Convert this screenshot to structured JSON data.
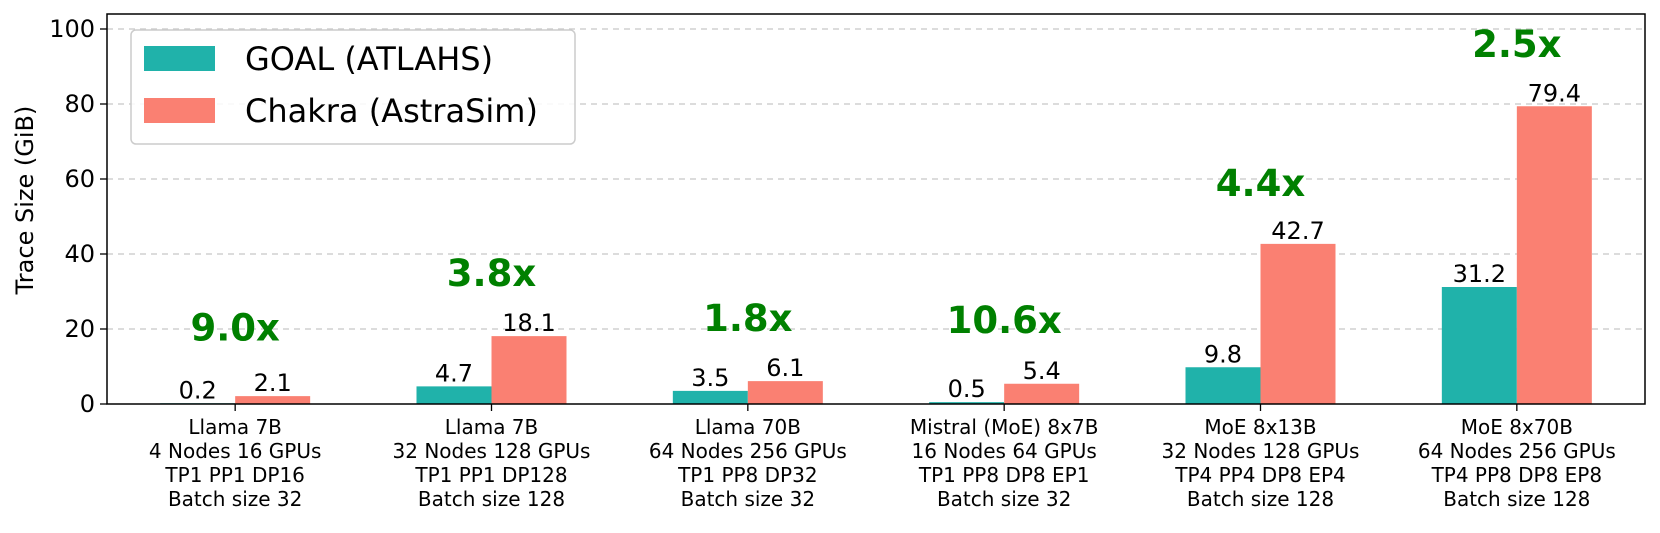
{
  "chart_data": {
    "type": "bar",
    "title": "",
    "xlabel": "",
    "ylabel": "Trace Size (GiB)",
    "ylim": [
      0,
      104
    ],
    "yticks": [
      0,
      20,
      40,
      60,
      80,
      100
    ],
    "grid": "y-dashed",
    "legend_position": "top-left",
    "categories": [
      [
        "Llama 7B",
        "4 Nodes 16 GPUs",
        "TP1 PP1 DP16",
        "Batch size 32"
      ],
      [
        "Llama 7B",
        "32 Nodes 128 GPUs",
        "TP1 PP1 DP128",
        "Batch size 128"
      ],
      [
        "Llama 70B",
        "64 Nodes 256 GPUs",
        "TP1 PP8 DP32",
        "Batch size 32"
      ],
      [
        "Mistral (MoE) 8x7B",
        "16 Nodes 64 GPUs",
        "TP1 PP8 DP8 EP1",
        "Batch size 32"
      ],
      [
        "MoE 8x13B",
        "32 Nodes 128 GPUs",
        "TP4 PP4 DP8 EP4",
        "Batch size 128"
      ],
      [
        "MoE 8x70B",
        "64 Nodes 256 GPUs",
        "TP4 PP8 DP8 EP8",
        "Batch size 128"
      ]
    ],
    "series": [
      {
        "name": "GOAL (ATLAHS)",
        "color": "#20b2aa",
        "values": [
          0.2,
          4.7,
          3.5,
          0.5,
          9.8,
          31.2
        ],
        "labels": [
          "0.2",
          "4.7",
          "3.5",
          "0.5",
          "9.8",
          "31.2"
        ]
      },
      {
        "name": "Chakra (AstraSim)",
        "color": "#fa8072",
        "values": [
          2.1,
          18.1,
          6.1,
          5.4,
          42.7,
          79.4
        ],
        "labels": [
          "2.1",
          "18.1",
          "6.1",
          "5.4",
          "42.7",
          "79.4"
        ]
      }
    ],
    "annotations": [
      {
        "text": "9.0x",
        "y": 17
      },
      {
        "text": "3.8x",
        "y": 31.5
      },
      {
        "text": "1.8x",
        "y": 19.5
      },
      {
        "text": "10.6x",
        "y": 19
      },
      {
        "text": "4.4x",
        "y": 55.5
      },
      {
        "text": "2.5x",
        "y": 92.5
      }
    ],
    "annotation_color": "#008000"
  }
}
